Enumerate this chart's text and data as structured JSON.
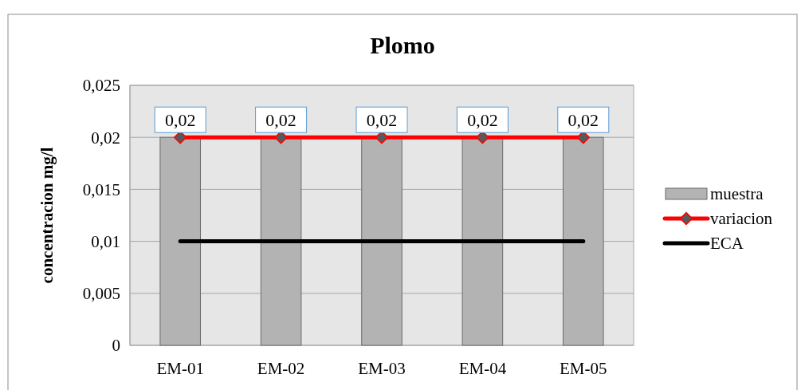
{
  "chart_data": {
    "type": "bar",
    "title": "Plomo",
    "ylabel": "concentracion mg/l",
    "categories": [
      "EM-01",
      "EM-02",
      "EM-03",
      "EM-04",
      "EM-05"
    ],
    "series": [
      {
        "name": "muestra",
        "color": "#b3b3b3",
        "values": [
          0.02,
          0.02,
          0.02,
          0.02,
          0.02
        ],
        "value_labels": [
          "0,02",
          "0,02",
          "0,02",
          "0,02",
          "0,02"
        ]
      },
      {
        "name": "variacion",
        "type": "line",
        "color": "#ff0000",
        "marker": "diamond",
        "values": [
          0.02,
          0.02,
          0.02,
          0.02,
          0.02
        ]
      },
      {
        "name": "ECA",
        "type": "line",
        "color": "#000000",
        "marker": "none",
        "values": [
          0.01,
          0.01,
          0.01,
          0.01,
          0.01
        ]
      }
    ],
    "ylim": [
      0,
      0.025
    ],
    "yticks": [
      0,
      {
        "value": 0.005,
        "label": "0,005"
      },
      {
        "value": 0.01,
        "label": "0,01"
      },
      {
        "value": 0.015,
        "label": "0,015"
      },
      {
        "value": 0.02,
        "label": "0,02"
      },
      {
        "value": 0.025,
        "label": "0,025"
      }
    ],
    "grid": "y",
    "legend": "right"
  }
}
